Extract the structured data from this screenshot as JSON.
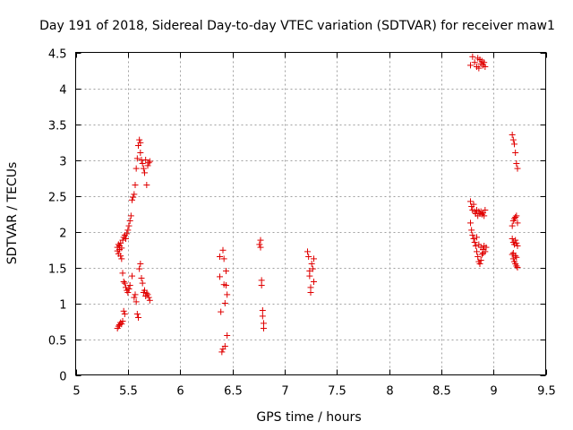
{
  "chart_data": {
    "type": "scatter",
    "title": "Day 191 of 2018, Sidereal Day-to-day VTEC variation (SDTVAR) for receiver maw1",
    "xlabel": "GPS time / hours",
    "ylabel": "SDTVAR / TECUs",
    "xlim": [
      5,
      9.5
    ],
    "ylim": [
      0,
      4.5
    ],
    "xticks": [
      5,
      5.5,
      6,
      6.5,
      7,
      7.5,
      8,
      8.5,
      9,
      9.5
    ],
    "xtick_labels": [
      "5",
      "5.5",
      "6",
      "6.5",
      "7",
      "7.5",
      "8",
      "8.5",
      "9",
      "9.5"
    ],
    "yticks": [
      0,
      0.5,
      1,
      1.5,
      2,
      2.5,
      3,
      3.5,
      4,
      4.5
    ],
    "ytick_labels": [
      "0",
      "0.5",
      "1",
      "1.5",
      "2",
      "2.5",
      "3",
      "3.5",
      "4",
      "4.5"
    ],
    "grid": true,
    "marker": "+",
    "color": "#e00000",
    "series": [
      {
        "name": "SDTVAR",
        "points": [
          [
            5.4,
            1.78
          ],
          [
            5.4,
            1.73
          ],
          [
            5.41,
            1.82
          ],
          [
            5.41,
            1.69
          ],
          [
            5.42,
            1.8
          ],
          [
            5.42,
            1.75
          ],
          [
            5.43,
            1.84
          ],
          [
            5.43,
            1.66
          ],
          [
            5.44,
            1.77
          ],
          [
            5.44,
            1.62
          ],
          [
            5.45,
            1.88
          ],
          [
            5.46,
            1.92
          ],
          [
            5.47,
            1.95
          ],
          [
            5.48,
            1.9
          ],
          [
            5.49,
            1.97
          ],
          [
            5.5,
            2.02
          ],
          [
            5.51,
            2.08
          ],
          [
            5.52,
            2.15
          ],
          [
            5.53,
            2.22
          ],
          [
            5.54,
            2.44
          ],
          [
            5.55,
            2.48
          ],
          [
            5.56,
            2.52
          ],
          [
            5.57,
            2.65
          ],
          [
            5.58,
            2.88
          ],
          [
            5.59,
            3.02
          ],
          [
            5.6,
            3.2
          ],
          [
            5.61,
            3.28
          ],
          [
            5.62,
            3.24
          ],
          [
            5.62,
            3.1
          ],
          [
            5.63,
            3.0
          ],
          [
            5.64,
            2.95
          ],
          [
            5.65,
            2.88
          ],
          [
            5.66,
            2.82
          ],
          [
            5.67,
            3.0
          ],
          [
            5.68,
            2.65
          ],
          [
            5.69,
            2.92
          ],
          [
            5.7,
            2.96
          ],
          [
            5.71,
            2.98
          ],
          [
            5.4,
            0.65
          ],
          [
            5.41,
            0.68
          ],
          [
            5.42,
            0.7
          ],
          [
            5.43,
            0.73
          ],
          [
            5.44,
            0.71
          ],
          [
            5.45,
            0.75
          ],
          [
            5.46,
            0.89
          ],
          [
            5.47,
            0.85
          ],
          [
            5.45,
            1.42
          ],
          [
            5.46,
            1.3
          ],
          [
            5.47,
            1.28
          ],
          [
            5.48,
            1.22
          ],
          [
            5.49,
            1.18
          ],
          [
            5.5,
            1.15
          ],
          [
            5.51,
            1.2
          ],
          [
            5.52,
            1.25
          ],
          [
            5.54,
            1.38
          ],
          [
            5.56,
            1.08
          ],
          [
            5.57,
            1.12
          ],
          [
            5.58,
            1.02
          ],
          [
            5.59,
            0.85
          ],
          [
            5.6,
            0.8
          ],
          [
            5.61,
            1.48
          ],
          [
            5.62,
            1.55
          ],
          [
            5.63,
            1.35
          ],
          [
            5.64,
            1.28
          ],
          [
            5.65,
            1.15
          ],
          [
            5.66,
            1.18
          ],
          [
            5.67,
            1.1
          ],
          [
            5.68,
            1.14
          ],
          [
            5.69,
            1.12
          ],
          [
            5.7,
            1.08
          ],
          [
            5.71,
            1.04
          ],
          [
            6.38,
            1.65
          ],
          [
            6.38,
            1.37
          ],
          [
            6.39,
            0.88
          ],
          [
            6.4,
            0.32
          ],
          [
            6.41,
            0.36
          ],
          [
            6.41,
            1.74
          ],
          [
            6.42,
            1.62
          ],
          [
            6.42,
            1.26
          ],
          [
            6.43,
            1.0
          ],
          [
            6.43,
            0.4
          ],
          [
            6.44,
            1.45
          ],
          [
            6.44,
            1.25
          ],
          [
            6.45,
            1.12
          ],
          [
            6.45,
            0.55
          ],
          [
            6.76,
            1.82
          ],
          [
            6.77,
            1.88
          ],
          [
            6.77,
            1.78
          ],
          [
            6.78,
            1.32
          ],
          [
            6.78,
            1.25
          ],
          [
            6.79,
            0.9
          ],
          [
            6.79,
            0.82
          ],
          [
            6.8,
            0.65
          ],
          [
            6.8,
            0.72
          ],
          [
            7.22,
            1.72
          ],
          [
            7.23,
            1.65
          ],
          [
            7.24,
            1.45
          ],
          [
            7.24,
            1.38
          ],
          [
            7.25,
            1.22
          ],
          [
            7.25,
            1.15
          ],
          [
            7.26,
            1.55
          ],
          [
            7.27,
            1.48
          ],
          [
            7.28,
            1.62
          ],
          [
            7.28,
            1.3
          ],
          [
            8.78,
            4.32
          ],
          [
            8.8,
            4.44
          ],
          [
            8.82,
            4.36
          ],
          [
            8.84,
            4.3
          ],
          [
            8.85,
            4.42
          ],
          [
            8.86,
            4.28
          ],
          [
            8.87,
            4.4
          ],
          [
            8.88,
            4.34
          ],
          [
            8.89,
            4.38
          ],
          [
            8.9,
            4.32
          ],
          [
            8.91,
            4.36
          ],
          [
            8.92,
            4.3
          ],
          [
            8.78,
            2.42
          ],
          [
            8.79,
            2.35
          ],
          [
            8.8,
            2.3
          ],
          [
            8.81,
            2.38
          ],
          [
            8.82,
            2.28
          ],
          [
            8.83,
            2.25
          ],
          [
            8.84,
            2.3
          ],
          [
            8.85,
            2.22
          ],
          [
            8.86,
            2.28
          ],
          [
            8.87,
            2.25
          ],
          [
            8.88,
            2.28
          ],
          [
            8.89,
            2.24
          ],
          [
            8.9,
            2.26
          ],
          [
            8.91,
            2.22
          ],
          [
            8.92,
            2.3
          ],
          [
            8.78,
            2.12
          ],
          [
            8.79,
            2.02
          ],
          [
            8.8,
            1.95
          ],
          [
            8.81,
            1.9
          ],
          [
            8.82,
            1.85
          ],
          [
            8.83,
            1.8
          ],
          [
            8.84,
            1.72
          ],
          [
            8.85,
            1.65
          ],
          [
            8.86,
            1.58
          ],
          [
            8.87,
            1.55
          ],
          [
            8.88,
            1.6
          ],
          [
            8.89,
            1.68
          ],
          [
            8.9,
            1.75
          ],
          [
            8.91,
            1.8
          ],
          [
            8.92,
            1.72
          ],
          [
            8.93,
            1.78
          ],
          [
            8.84,
            1.92
          ],
          [
            8.86,
            1.82
          ],
          [
            8.88,
            1.78
          ],
          [
            8.9,
            1.7
          ],
          [
            9.18,
            3.35
          ],
          [
            9.19,
            3.28
          ],
          [
            9.2,
            3.22
          ],
          [
            9.21,
            3.1
          ],
          [
            9.22,
            2.95
          ],
          [
            9.23,
            2.88
          ],
          [
            9.18,
            2.08
          ],
          [
            9.19,
            2.15
          ],
          [
            9.2,
            2.18
          ],
          [
            9.21,
            2.2
          ],
          [
            9.22,
            2.22
          ],
          [
            9.23,
            2.12
          ],
          [
            9.18,
            1.9
          ],
          [
            9.19,
            1.85
          ],
          [
            9.2,
            1.82
          ],
          [
            9.21,
            1.88
          ],
          [
            9.22,
            1.84
          ],
          [
            9.23,
            1.8
          ],
          [
            9.18,
            1.68
          ],
          [
            9.19,
            1.62
          ],
          [
            9.2,
            1.58
          ],
          [
            9.21,
            1.55
          ],
          [
            9.22,
            1.52
          ],
          [
            9.23,
            1.5
          ],
          [
            9.19,
            1.7
          ],
          [
            9.21,
            1.66
          ],
          [
            9.22,
            1.64
          ]
        ]
      }
    ]
  }
}
